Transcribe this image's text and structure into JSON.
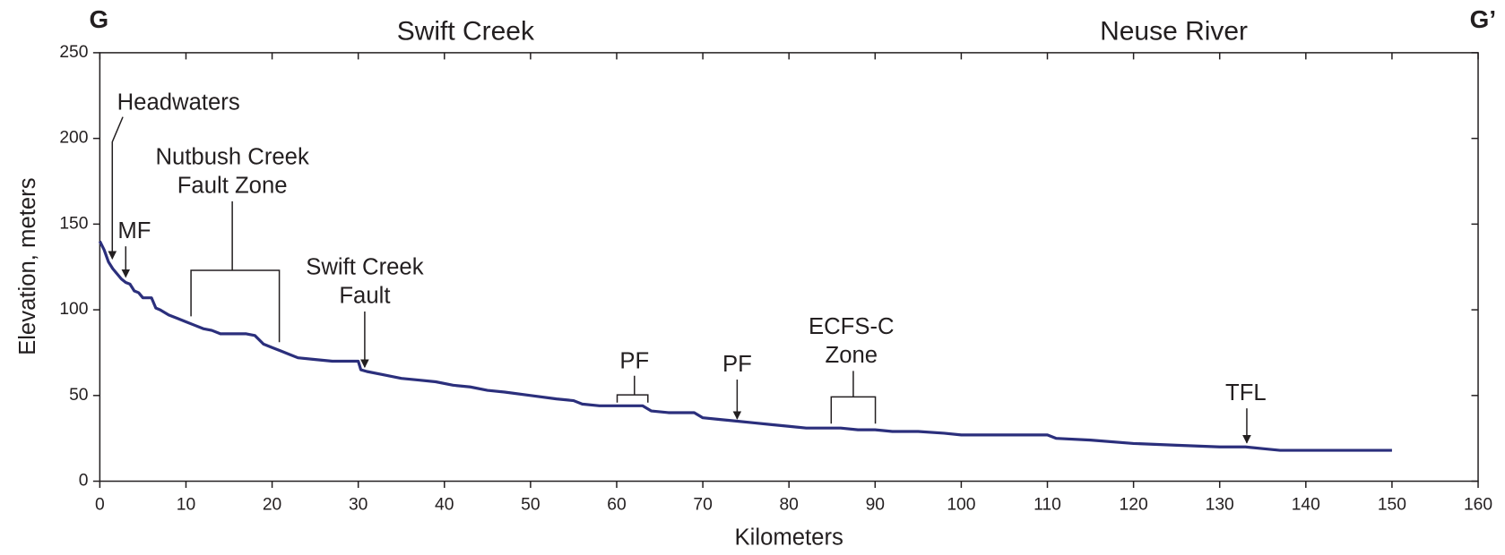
{
  "chart_data": {
    "type": "line",
    "left_label": "G",
    "right_label": "G’",
    "region_labels": [
      "Swift Creek",
      "Neuse River"
    ],
    "xlabel": "Kilometers",
    "ylabel": "Elevation, meters",
    "xlim": [
      0,
      160
    ],
    "xticks": [
      0,
      10,
      20,
      30,
      40,
      50,
      60,
      70,
      80,
      90,
      100,
      110,
      120,
      130,
      140,
      150,
      160
    ],
    "ylim": [
      0,
      250
    ],
    "yticks": [
      0,
      50,
      100,
      150,
      200,
      250
    ],
    "x": [
      0,
      0.5,
      1,
      1.5,
      2,
      2.5,
      3,
      3.5,
      4,
      4.5,
      5,
      6,
      6.5,
      7,
      8,
      9,
      10,
      11,
      12,
      13,
      14,
      15,
      16,
      17,
      18,
      19,
      20,
      21,
      22,
      23,
      25,
      27,
      29,
      30,
      30.3,
      31,
      33,
      35,
      37,
      39,
      41,
      43,
      45,
      47,
      50,
      53,
      55,
      56,
      58,
      60,
      63,
      64,
      66,
      68,
      69,
      70,
      72,
      74,
      76,
      78,
      80,
      82,
      84,
      86,
      88,
      90,
      92,
      95,
      98,
      100,
      105,
      110,
      111,
      115,
      120,
      125,
      130,
      133,
      135,
      137,
      140,
      145,
      150
    ],
    "series": [
      {
        "name": "Profile",
        "color": "#2b2f7c",
        "values": [
          140,
          135,
          128,
          124,
          121,
          118,
          116,
          115,
          111,
          110,
          107,
          107,
          101,
          100,
          97,
          95,
          93,
          91,
          89,
          88,
          86,
          86,
          86,
          86,
          85,
          80,
          78,
          76,
          74,
          72,
          71,
          70,
          70,
          70,
          65,
          64,
          62,
          60,
          59,
          58,
          56,
          55,
          53,
          52,
          50,
          48,
          47,
          45,
          44,
          44,
          44,
          41,
          40,
          40,
          40,
          37,
          36,
          35,
          34,
          33,
          32,
          31,
          31,
          31,
          30,
          30,
          29,
          29,
          28,
          27,
          27,
          27,
          25,
          24,
          22,
          21,
          20,
          20,
          19,
          18,
          18,
          18,
          18
        ]
      }
    ],
    "annotations": [
      [
        "Headwaters"
      ],
      [
        "MF"
      ],
      [
        "Nutbush Creek",
        "Fault Zone"
      ],
      [
        "Swift Creek",
        "Fault"
      ],
      [
        "PF"
      ],
      [
        "PF"
      ],
      [
        "ECFS-C",
        "Zone"
      ],
      [
        "TFL"
      ]
    ]
  }
}
